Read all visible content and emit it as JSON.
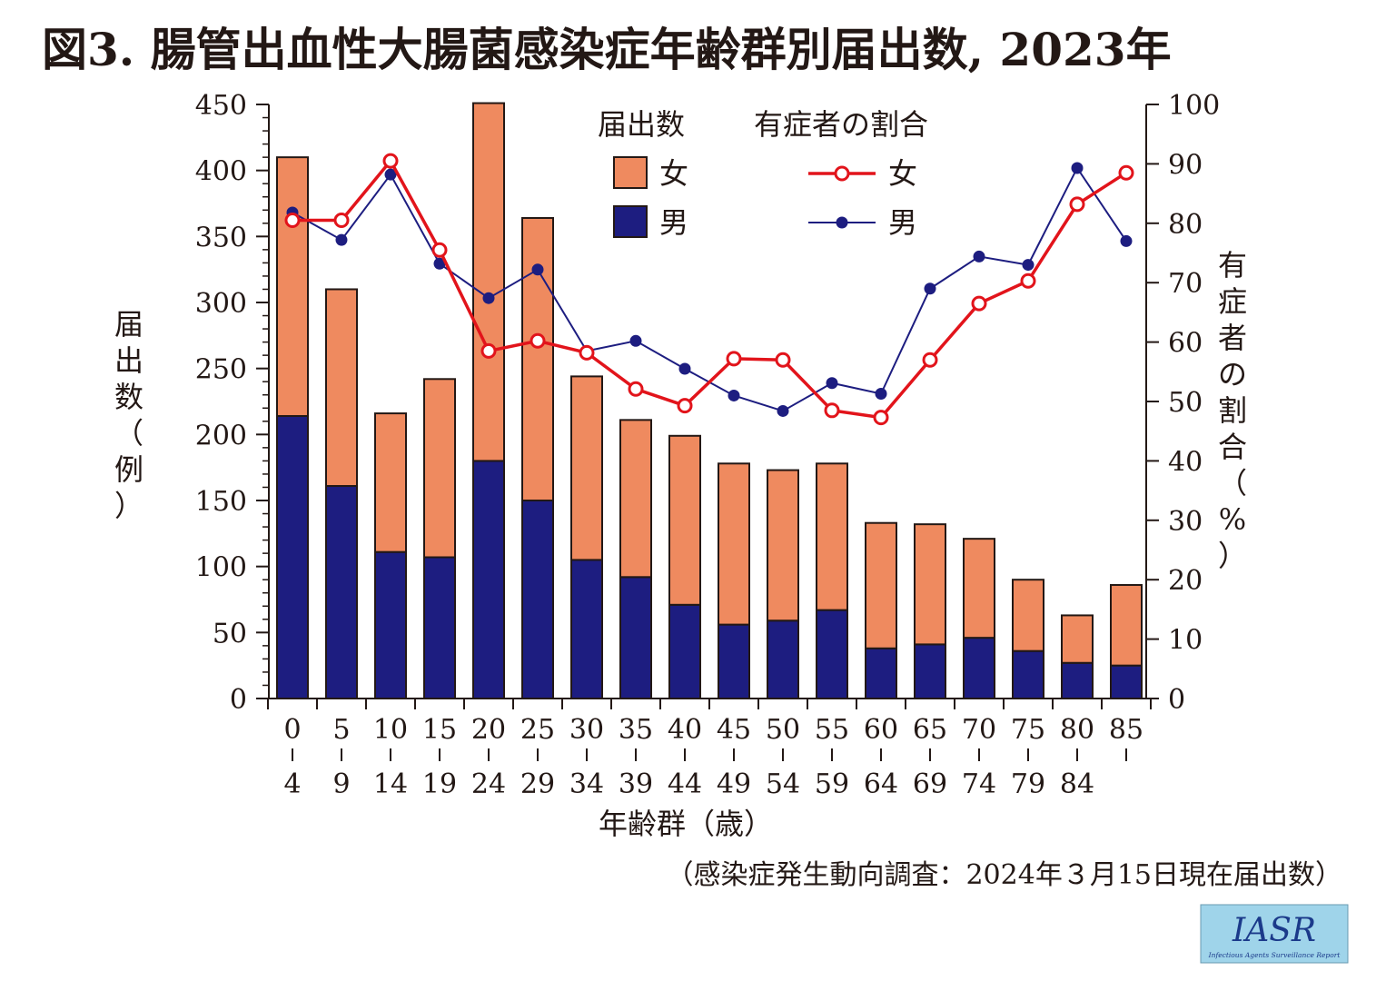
{
  "chart_data": {
    "type": "bar",
    "title": "図3. 腸管出血性大腸菌感染症年齢群別届出数, 2023年",
    "source": "（感染症発生動向調査：2024年３月15日現在届出数）",
    "logo": {
      "text": "IASR",
      "subtext": "Infectious Agents Surveillance Report"
    },
    "xlabel": "年齢群（歳）",
    "ylabel": "届出数（例）",
    "y2label": "有症者の割合（%）",
    "ylim": [
      0,
      450
    ],
    "y2lim": [
      0,
      100
    ],
    "categories": [
      {
        "top": "0",
        "bottom": "4"
      },
      {
        "top": "5",
        "bottom": "9"
      },
      {
        "top": "10",
        "bottom": "14"
      },
      {
        "top": "15",
        "bottom": "19"
      },
      {
        "top": "20",
        "bottom": "24"
      },
      {
        "top": "25",
        "bottom": "29"
      },
      {
        "top": "30",
        "bottom": "34"
      },
      {
        "top": "35",
        "bottom": "39"
      },
      {
        "top": "40",
        "bottom": "44"
      },
      {
        "top": "45",
        "bottom": "49"
      },
      {
        "top": "50",
        "bottom": "54"
      },
      {
        "top": "55",
        "bottom": "59"
      },
      {
        "top": "60",
        "bottom": "64"
      },
      {
        "top": "65",
        "bottom": "69"
      },
      {
        "top": "70",
        "bottom": "74"
      },
      {
        "top": "75",
        "bottom": "79"
      },
      {
        "top": "80",
        "bottom": "84"
      },
      {
        "top": "85",
        "bottom": ""
      }
    ],
    "legend": {
      "bar_heading": "届出数",
      "line_heading": "有症者の割合",
      "placement": "top-center"
    },
    "bar_series": [
      {
        "name": "男",
        "color": "#1d1d80",
        "values": [
          214,
          161,
          111,
          107,
          180,
          150,
          105,
          92,
          71,
          56,
          59,
          67,
          38,
          41,
          46,
          36,
          27,
          25
        ]
      },
      {
        "name": "女",
        "color": "#ef8a5f",
        "values": [
          196,
          149,
          105,
          135,
          271,
          214,
          139,
          119,
          128,
          122,
          114,
          111,
          95,
          91,
          75,
          54,
          36,
          61
        ]
      }
    ],
    "line_series": [
      {
        "name": "女",
        "color": "#e2141b",
        "values": [
          80.5,
          80.5,
          90.5,
          75.5,
          58.5,
          60.2,
          58.2,
          52.1,
          49.3,
          57.2,
          57.0,
          48.5,
          47.3,
          57.0,
          66.5,
          70.3,
          83.2,
          88.5
        ]
      },
      {
        "name": "男",
        "color": "#1d1d80",
        "values": [
          81.8,
          77.2,
          88.2,
          73.2,
          67.4,
          72.2,
          58.5,
          60.2,
          55.5,
          51.0,
          48.4,
          53.1,
          51.3,
          69.0,
          74.4,
          73.0,
          89.3,
          77.0
        ]
      }
    ],
    "yticks": [
      0,
      50,
      100,
      150,
      200,
      250,
      300,
      350,
      400,
      450
    ],
    "y2ticks": [
      0,
      10,
      20,
      30,
      40,
      50,
      60,
      70,
      80,
      90,
      100
    ],
    "grid": false
  }
}
